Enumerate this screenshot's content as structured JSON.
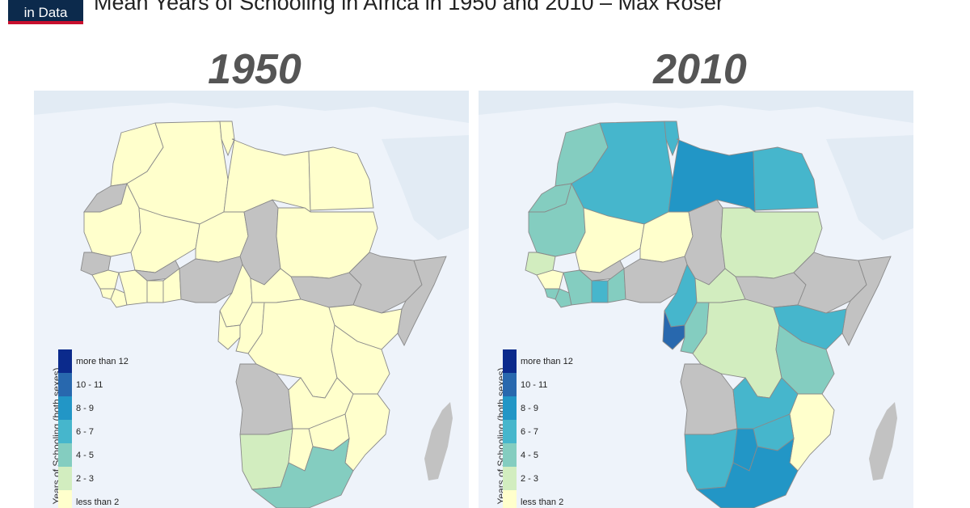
{
  "header": {
    "logo_text": "in Data",
    "title": "Mean Years of Schooling in Africa in 1950 and 2010 – Max Roser"
  },
  "colors": {
    "ocean": "#eef3fa",
    "landmass": "#e2ebf4",
    "no_data": "#c2c2c2",
    "lt2": "#ffffcc",
    "y2_3": "#d2edbf",
    "y4_5": "#84cdc0",
    "y6_7": "#46b6cc",
    "y8_9": "#2296c6",
    "y10_11": "#2868ae",
    "gt12": "#0b2a8c"
  },
  "legend": {
    "title": "Years of Schooling (both sexes)",
    "items": [
      "more than 12",
      "10 - 11",
      "8 - 9",
      "6 - 7",
      "4 - 5",
      "2 - 3",
      "less than 2"
    ]
  },
  "maps": [
    {
      "year": "1950"
    },
    {
      "year": "2010"
    }
  ]
}
